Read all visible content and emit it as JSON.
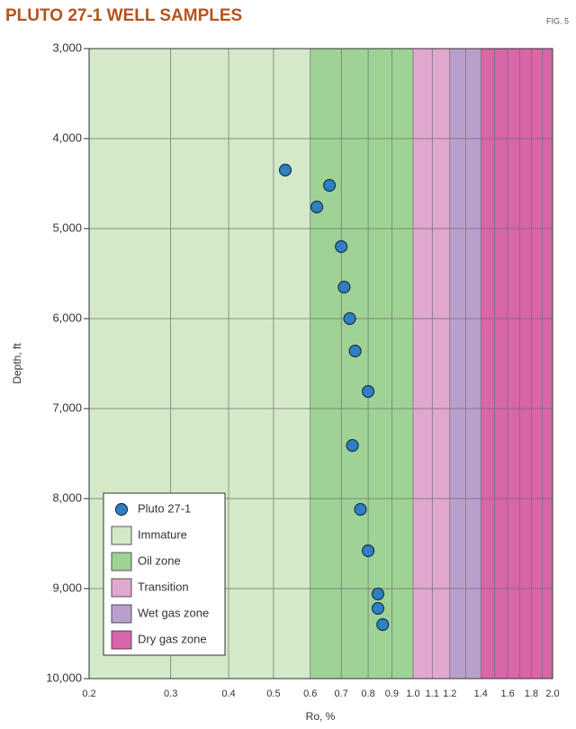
{
  "chart_data": {
    "type": "scatter",
    "title": "PLUTO 27-1 WELL SAMPLES",
    "figure_label": "FIG. 5",
    "x_label": "Ro, %",
    "y_label": "Depth, ft",
    "x_log": true,
    "y_inverted": true,
    "grid": true,
    "xlim": [
      0.2,
      2.0
    ],
    "ylim": [
      3000,
      10000
    ],
    "xticks": [
      0.2,
      0.3,
      0.4,
      0.5,
      0.6,
      0.7,
      0.8,
      0.9,
      {
        "value": 1,
        "label": "1.0"
      },
      1.1,
      1.2,
      1.4,
      1.6,
      1.8,
      {
        "value": 2,
        "label": "2.0"
      }
    ],
    "x_minor_grid": [
      1.3,
      1.5,
      1.7,
      1.9
    ],
    "yticks": [
      {
        "value": 3000,
        "label": "3,000"
      },
      {
        "value": 4000,
        "label": "4,000"
      },
      {
        "value": 5000,
        "label": "5,000"
      },
      {
        "value": 6000,
        "label": "6,000"
      },
      {
        "value": 7000,
        "label": "7,000"
      },
      {
        "value": 8000,
        "label": "8,000"
      },
      {
        "value": 9000,
        "label": "9,000"
      },
      {
        "value": 10000,
        "label": "10,000"
      }
    ],
    "zones": [
      {
        "name": "Immature",
        "color": "#d3e9c8",
        "from": 0.2,
        "to": 0.6
      },
      {
        "name": "Oil zone",
        "color": "#9fd396",
        "from": 0.6,
        "to": 1.0
      },
      {
        "name": "Transition",
        "color": "#e0a8cf",
        "from": 1.0,
        "to": 1.2
      },
      {
        "name": "Wet gas zone",
        "color": "#b9a0cc",
        "from": 1.2,
        "to": 1.4
      },
      {
        "name": "Dry gas zone",
        "color": "#d866a8",
        "from": 1.4,
        "to": 2.0
      }
    ],
    "legend_position": "lower left",
    "series": [
      {
        "name": "Pluto 27-1",
        "color": "#2f7fc1",
        "x": [
          0.53,
          0.66,
          0.62,
          0.7,
          0.71,
          0.73,
          0.75,
          0.8,
          0.74,
          0.77,
          0.8,
          0.84,
          0.84,
          0.86
        ],
        "values": [
          4350,
          4520,
          4760,
          5200,
          5650,
          6000,
          6360,
          6810,
          7410,
          8120,
          8580,
          9060,
          9220,
          9400
        ]
      }
    ]
  }
}
